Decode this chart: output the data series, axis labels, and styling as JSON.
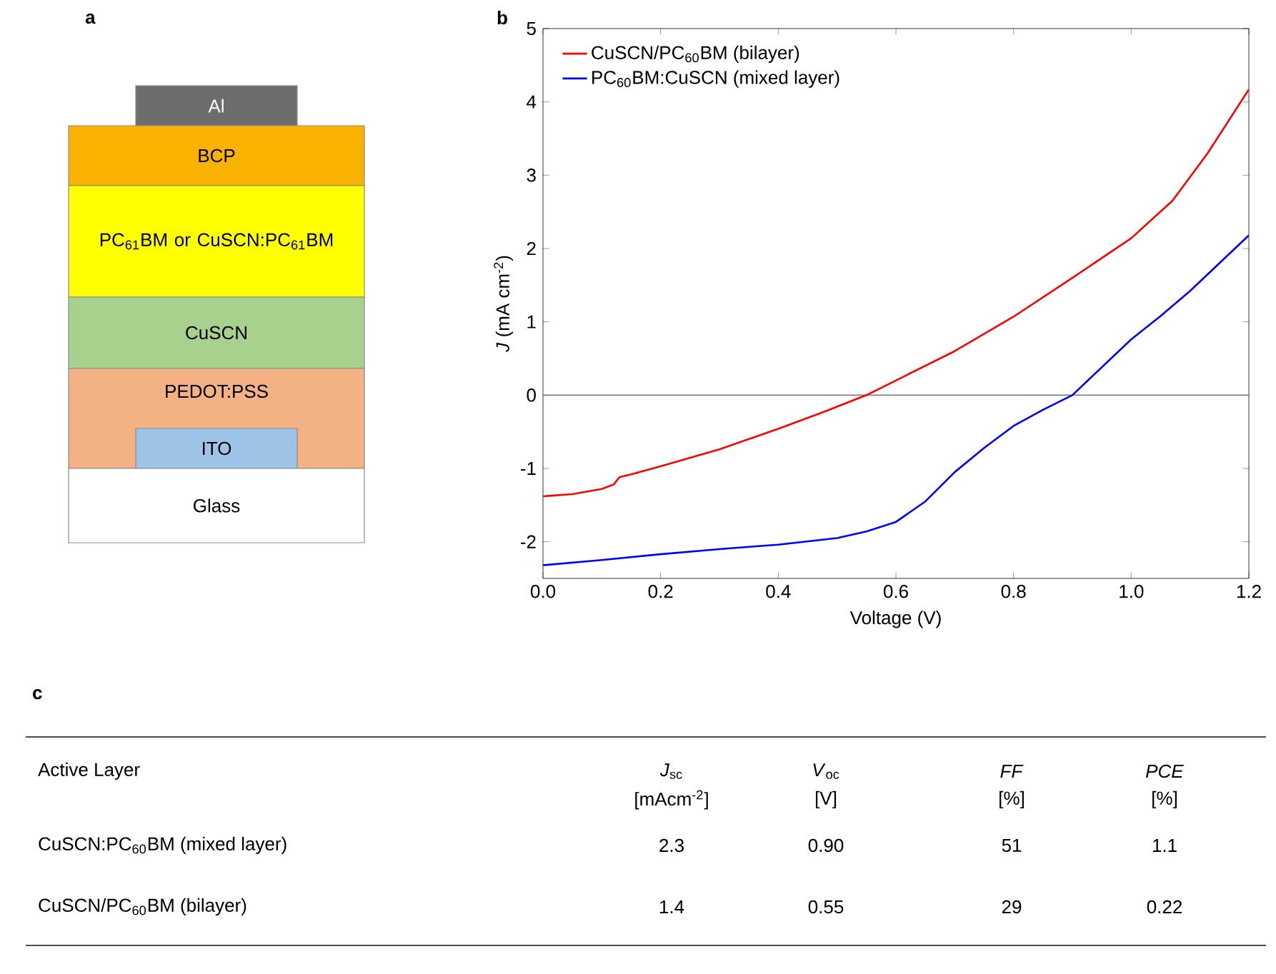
{
  "chart_data": [
    {
      "type": "other",
      "title": "a",
      "annotations": [
        "Al",
        "BCP",
        "PC$_{61}$BM or CuSCN:PC$_{61}$BM",
        "CuSCN",
        "PEDOT:PSS",
        "ITO",
        "Glass"
      ],
      "colors": [
        "#6d6d6d",
        "#f9b200",
        "#ffff00",
        "#a9d18e",
        "#f4b183",
        "#9dc3e6",
        "#ffffff"
      ]
    },
    {
      "type": "line",
      "title": "b",
      "xlabel": "Voltage (V)",
      "ylabel": "*J* (mA cm$^{-2}$)",
      "xlim": [
        0,
        1.2
      ],
      "ylim": [
        -2.5,
        5
      ],
      "xticks": [
        {
          "value": 0,
          "label": "0.0"
        },
        0.2,
        0.4,
        0.6,
        0.8,
        {
          "value": 1,
          "label": "1.0"
        },
        1.2
      ],
      "yticks": [
        -2,
        -1,
        0,
        1,
        2,
        3,
        4,
        5
      ],
      "legend": "top left",
      "ref_lines": [
        {
          "axis": "y",
          "value": 0,
          "color": "#7f7f7f"
        }
      ],
      "series": [
        {
          "name": "CuSCN/PC$_{60}$BM (bilayer)",
          "color": "#ff0000",
          "x": [
            0,
            0.05,
            0.1,
            0.12,
            0.13,
            0.15,
            0.2,
            0.3,
            0.4,
            0.48,
            0.55,
            0.6,
            0.7,
            0.8,
            0.9,
            1.0,
            1.07,
            1.13,
            1.2
          ],
          "values": [
            -1.38,
            -1.35,
            -1.28,
            -1.22,
            -1.12,
            -1.08,
            -0.97,
            -0.74,
            -0.46,
            -0.22,
            0,
            0.2,
            0.6,
            1.07,
            1.6,
            2.14,
            2.65,
            3.3,
            4.17
          ]
        },
        {
          "name": "PC$_{60}$BM:CuSCN (mixed layer)",
          "color": "#0000ff",
          "x": [
            0,
            0.1,
            0.2,
            0.3,
            0.4,
            0.5,
            0.55,
            0.6,
            0.65,
            0.7,
            0.75,
            0.8,
            0.85,
            0.9,
            0.95,
            1.0,
            1.05,
            1.1,
            1.15,
            1.2
          ],
          "values": [
            -2.32,
            -2.25,
            -2.17,
            -2.1,
            -2.04,
            -1.95,
            -1.86,
            -1.73,
            -1.45,
            -1.05,
            -0.72,
            -0.42,
            -0.2,
            0,
            0.38,
            0.76,
            1.08,
            1.42,
            1.8,
            2.18
          ]
        }
      ]
    },
    {
      "type": "other",
      "title": "c",
      "annotations": [
        "Active Layer",
        "*J*$_{sc}$",
        "*V*$_{oc}$",
        "*FF*",
        "*PCE*",
        "[mAcm$^{-2}$]",
        "[V]",
        "[%]",
        "[%]",
        "CuSCN:PC$_{60}$BM (mixed layer)",
        "2.3",
        "0.90",
        "51",
        "1.1",
        "CuSCN/PC$_{60}$BM (bilayer)",
        "1.4",
        "0.55",
        "29",
        "0.22"
      ]
    }
  ]
}
